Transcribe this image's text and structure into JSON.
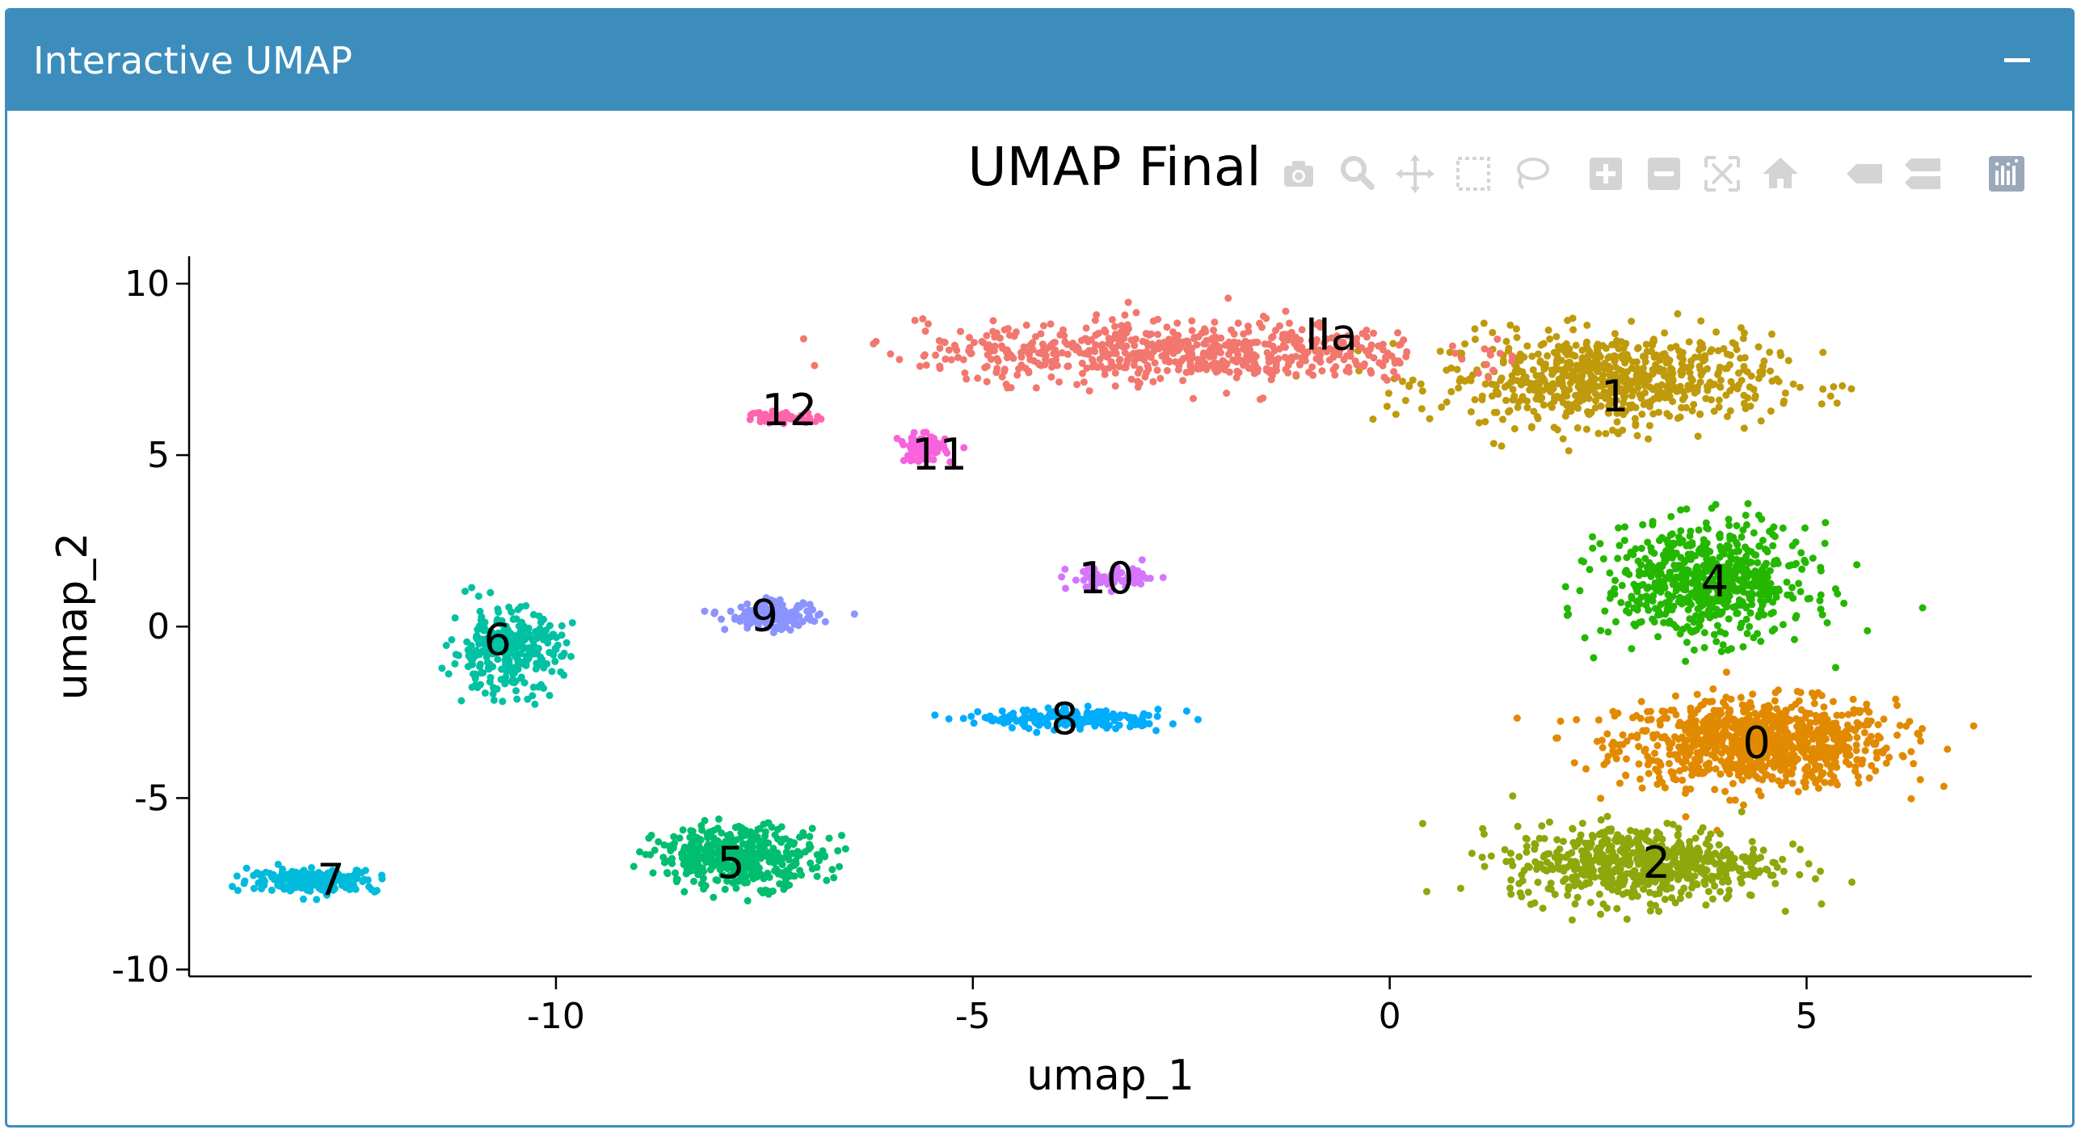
{
  "panel": {
    "title": "Interactive UMAP",
    "collapse_label": "−"
  },
  "modebar": {
    "buttons": [
      {
        "name": "camera-icon",
        "title": "Download plot as a png"
      },
      {
        "name": "zoom-icon",
        "title": "Zoom"
      },
      {
        "name": "pan-icon",
        "title": "Pan"
      },
      {
        "name": "box-select-icon",
        "title": "Box Select"
      },
      {
        "name": "lasso-select-icon",
        "title": "Lasso Select"
      },
      {
        "name": "zoom-in-icon",
        "title": "Zoom in"
      },
      {
        "name": "zoom-out-icon",
        "title": "Zoom out"
      },
      {
        "name": "autoscale-icon",
        "title": "Autoscale"
      },
      {
        "name": "reset-axes-icon",
        "title": "Reset axes"
      },
      {
        "name": "hover-closest-icon",
        "title": "Show closest data on hover"
      },
      {
        "name": "hover-compare-icon",
        "title": "Compare data on hover"
      },
      {
        "name": "plotly-logo-icon",
        "title": "Produced with Plotly"
      }
    ],
    "icon_color": "#d4d4d4",
    "logo_color": "#9aa8ba"
  },
  "chart_data": {
    "type": "scatter",
    "title": "UMAP Final",
    "xlabel": "umap_1",
    "ylabel": "umap_2",
    "xlim": [
      -14.4,
      7.7
    ],
    "ylim": [
      -10.2,
      10.8
    ],
    "x_ticks": [
      -10,
      -5,
      0,
      5
    ],
    "y_ticks": [
      -10,
      -5,
      0,
      5,
      10
    ],
    "grid": false,
    "legend": "none",
    "clusters": [
      {
        "label": "0",
        "color": "#e18a00",
        "center": [
          4.4,
          -3.4
        ],
        "spread": [
          1.5,
          1.15
        ],
        "points": 900,
        "label_pos": [
          4.4,
          -3.4
        ]
      },
      {
        "label": "1",
        "color": "#bf9a0b",
        "center": [
          2.6,
          7.2
        ],
        "spread": [
          1.8,
          1.2
        ],
        "points": 700,
        "label_pos": [
          2.7,
          6.7
        ]
      },
      {
        "label": "2",
        "color": "#8ea70a",
        "center": [
          3.0,
          -6.9
        ],
        "spread": [
          1.4,
          1.0
        ],
        "points": 620,
        "label_pos": [
          3.2,
          -6.9
        ]
      },
      {
        "label": "IIa",
        "color": "#f2776e",
        "center": [
          -2.5,
          8.0
        ],
        "spread": [
          2.8,
          0.8
        ],
        "points": 650,
        "label_pos": [
          -0.7,
          8.5
        ]
      },
      {
        "label": "4",
        "color": "#24b700",
        "center": [
          3.8,
          1.3
        ],
        "spread": [
          1.1,
          1.5
        ],
        "points": 650,
        "label_pos": [
          3.9,
          1.3
        ]
      },
      {
        "label": "5",
        "color": "#00be70",
        "center": [
          -7.8,
          -6.7
        ],
        "spread": [
          0.9,
          0.8
        ],
        "points": 420,
        "label_pos": [
          -7.9,
          -6.9
        ]
      },
      {
        "label": "6",
        "color": "#00c1a3",
        "center": [
          -10.6,
          -0.7
        ],
        "spread": [
          0.6,
          1.1
        ],
        "points": 300,
        "label_pos": [
          -10.7,
          -0.4
        ]
      },
      {
        "label": "7",
        "color": "#00bbdb",
        "center": [
          -12.9,
          -7.4
        ],
        "spread": [
          0.7,
          0.3
        ],
        "points": 220,
        "label_pos": [
          -12.7,
          -7.4
        ]
      },
      {
        "label": "8",
        "color": "#00acfc",
        "center": [
          -3.8,
          -2.7
        ],
        "spread": [
          1.0,
          0.25
        ],
        "points": 200,
        "label_pos": [
          -3.9,
          -2.7
        ]
      },
      {
        "label": "9",
        "color": "#8b93ff",
        "center": [
          -7.4,
          0.3
        ],
        "spread": [
          0.5,
          0.35
        ],
        "points": 150,
        "label_pos": [
          -7.5,
          0.3
        ]
      },
      {
        "label": "10",
        "color": "#d575fe",
        "center": [
          -3.3,
          1.4
        ],
        "spread": [
          0.5,
          0.3
        ],
        "points": 70,
        "label_pos": [
          -3.4,
          1.4
        ]
      },
      {
        "label": "11",
        "color": "#f962dd",
        "center": [
          -5.6,
          5.2
        ],
        "spread": [
          0.25,
          0.35
        ],
        "points": 90,
        "label_pos": [
          -5.4,
          5.0
        ]
      },
      {
        "label": "12",
        "color": "#ff65ac",
        "center": [
          -7.3,
          6.1
        ],
        "spread": [
          0.4,
          0.15
        ],
        "points": 60,
        "label_pos": [
          -7.2,
          6.3
        ]
      }
    ]
  }
}
